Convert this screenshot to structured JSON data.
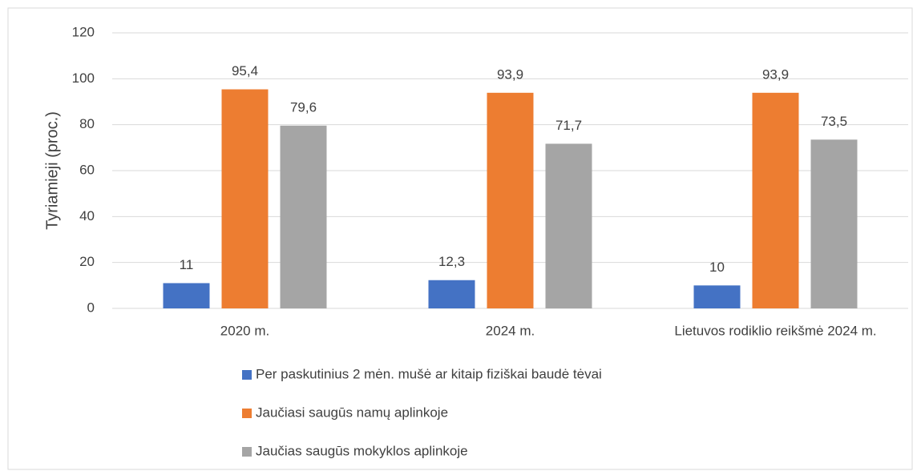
{
  "chart_data": {
    "type": "bar",
    "y_label": "Tyriamieji (proc.)",
    "categories": [
      "2020 m.",
      "2024 m.",
      "Lietuvos rodiklio reikšmė 2024 m."
    ],
    "series": [
      {
        "name": "Per paskutinius 2 mėn. mušė ar kitaip fiziškai baudė tėvai",
        "color": "#4472c4",
        "values": [
          11,
          12.3,
          10
        ],
        "value_labels": [
          "11",
          "12,3",
          "10"
        ]
      },
      {
        "name": "Jaučiasi saugūs namų aplinkoje",
        "color": "#ed7d31",
        "values": [
          95.4,
          93.9,
          93.9
        ],
        "value_labels": [
          "95,4",
          "93,9",
          "93,9"
        ]
      },
      {
        "name": "Jaučias saugūs mokyklos aplinkoje",
        "color": "#a5a5a5",
        "values": [
          79.6,
          71.7,
          73.5
        ],
        "value_labels": [
          "79,6",
          "71,7",
          "73,5"
        ]
      }
    ],
    "ylim": [
      0,
      120
    ],
    "yticks": [
      0,
      20,
      40,
      60,
      80,
      100,
      120
    ],
    "grid": true,
    "legend": "bottom"
  }
}
